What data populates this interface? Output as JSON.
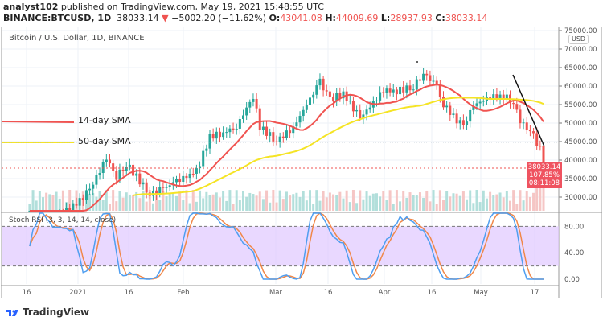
{
  "header": {
    "author": "analyst102",
    "published": "published on TradingView.com, May 19, 2021 15:48:55 UTC",
    "symbol": "BINANCE:BTCUSD, 1D",
    "last": "38033.14",
    "change": "−5002.20 (−11.62%)",
    "o_label": "O:",
    "o": "43041.08",
    "h_label": "H:",
    "h": "44009.69",
    "l_label": "L:",
    "l": "28937.93",
    "c_label": "C:",
    "c": "38033.14"
  },
  "chart_title": "Bitcoin / U.S. Dollar, 1D, BINANCE",
  "stoch_label": "Stoch RSI (3, 3, 14, 14, close)",
  "currency": "USD",
  "badge": {
    "price": "38033.14",
    "pct": "107.85%",
    "countdown": "08:11:08"
  },
  "sma14_label": "14-day SMA",
  "sma50_label": "50-day SMA",
  "footer": "TradingView",
  "colors": {
    "up": "#26a69a",
    "down": "#ef5350",
    "sma14": "#f05350",
    "sma50": "#f5e425",
    "stoch_k": "#4f9ef0",
    "stoch_d": "#f0884a",
    "band": "#e0c8ff"
  },
  "chart_data": {
    "type": "candlestick",
    "y_ticks": [
      "75000.00",
      "70000.00",
      "65000.00",
      "60000.00",
      "55000.00",
      "50000.00",
      "45000.00",
      "40000.00",
      "35000.00",
      "30000.00"
    ],
    "stoch_ticks": [
      "80.00",
      "40.00",
      "0.00"
    ],
    "x_ticks": [
      "16",
      "2021",
      "16",
      "Feb",
      "Mar",
      "16",
      "Apr",
      "16",
      "May",
      "17"
    ],
    "ylim": [
      25000,
      75000
    ],
    "closes": [
      [
        "2020-12-16",
        21300
      ],
      [
        "2020-12-20",
        23500
      ],
      [
        "2020-12-25",
        24700
      ],
      [
        "2020-12-31",
        29000
      ],
      [
        "2021-01-03",
        32000
      ],
      [
        "2021-01-08",
        40500
      ],
      [
        "2021-01-11",
        35500
      ],
      [
        "2021-01-14",
        39000
      ],
      [
        "2021-01-21",
        30800
      ],
      [
        "2021-01-25",
        32300
      ],
      [
        "2021-01-29",
        34300
      ],
      [
        "2021-02-04",
        36900
      ],
      [
        "2021-02-08",
        46300
      ],
      [
        "2021-02-12",
        47400
      ],
      [
        "2021-02-16",
        49000
      ],
      [
        "2021-02-21",
        57400
      ],
      [
        "2021-02-23",
        48900
      ],
      [
        "2021-02-28",
        45200
      ],
      [
        "2021-03-05",
        48800
      ],
      [
        "2021-03-13",
        61200
      ],
      [
        "2021-03-16",
        56300
      ],
      [
        "2021-03-20",
        58000
      ],
      [
        "2021-03-25",
        51300
      ],
      [
        "2021-04-01",
        58800
      ],
      [
        "2021-04-05",
        58700
      ],
      [
        "2021-04-10",
        59800
      ],
      [
        "2021-04-13",
        63500
      ],
      [
        "2021-04-17",
        60000
      ],
      [
        "2021-04-18",
        56200
      ],
      [
        "2021-04-22",
        51700
      ],
      [
        "2021-04-25",
        49000
      ],
      [
        "2021-04-28",
        54800
      ],
      [
        "2021-05-03",
        57100
      ],
      [
        "2021-05-07",
        57300
      ],
      [
        "2021-05-10",
        55800
      ],
      [
        "2021-05-12",
        50000
      ],
      [
        "2021-05-13",
        49600
      ],
      [
        "2021-05-16",
        46400
      ],
      [
        "2021-05-18",
        43000
      ],
      [
        "2021-05-19",
        38033.14
      ]
    ]
  }
}
